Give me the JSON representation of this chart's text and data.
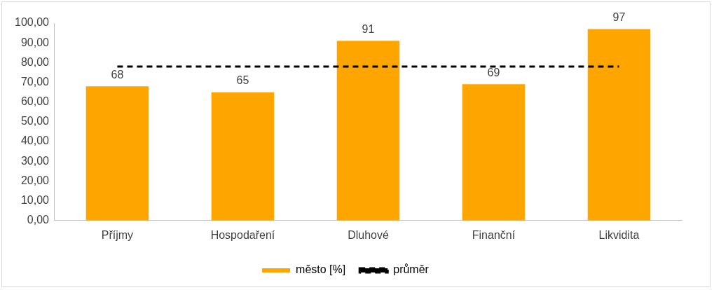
{
  "chart_data": {
    "type": "bar",
    "categories": [
      "Příjmy",
      "Hospodaření",
      "Dluhové",
      "Finanční",
      "Likvidita"
    ],
    "series": [
      {
        "name": "město [%]",
        "color": "#ffa500",
        "values": [
          68,
          65,
          91,
          69,
          97
        ],
        "value_labels": [
          "68",
          "65",
          "91",
          "69",
          "97"
        ]
      },
      {
        "name": "průměr",
        "type": "line",
        "color": "#000000",
        "values": [
          78,
          78,
          78,
          78,
          78
        ],
        "line_style": "dashed",
        "marker": "none"
      }
    ],
    "ylim": [
      0,
      100
    ],
    "yticks": [
      {
        "value": 0,
        "label": "0,00"
      },
      {
        "value": 10,
        "label": "10,00"
      },
      {
        "value": 20,
        "label": "20,00"
      },
      {
        "value": 30,
        "label": "30,00"
      },
      {
        "value": 40,
        "label": "40,00"
      },
      {
        "value": 50,
        "label": "50,00"
      },
      {
        "value": 60,
        "label": "60,00"
      },
      {
        "value": 70,
        "label": "70,00"
      },
      {
        "value": 80,
        "label": "80,00"
      },
      {
        "value": 90,
        "label": "90,00"
      },
      {
        "value": 100,
        "label": "100,00"
      }
    ],
    "grid": false,
    "legend": "bottom"
  }
}
